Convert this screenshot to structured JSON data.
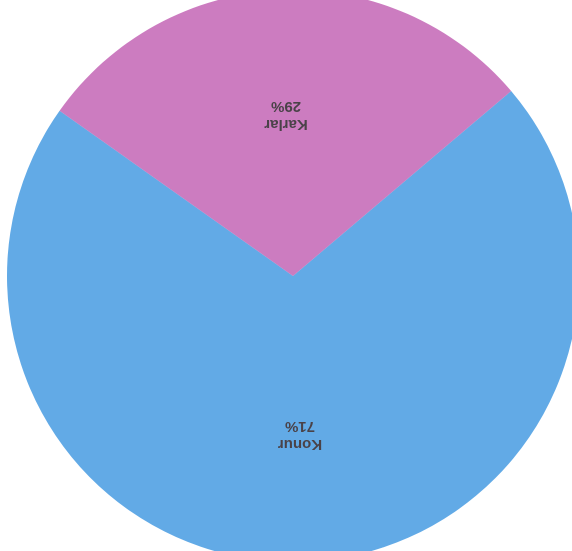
{
  "chart_data": {
    "type": "pie",
    "orientation": "upside-down",
    "slices": [
      {
        "name": "Konur",
        "value": 71,
        "label": "71%",
        "color": "#62aae6"
      },
      {
        "name": "Karlar",
        "value": 29,
        "label": "29%",
        "color": "#cc7cc0"
      }
    ],
    "title": "",
    "legend": "none",
    "colors": {
      "background": "#ffffff",
      "label_text": "#4a4248"
    }
  }
}
